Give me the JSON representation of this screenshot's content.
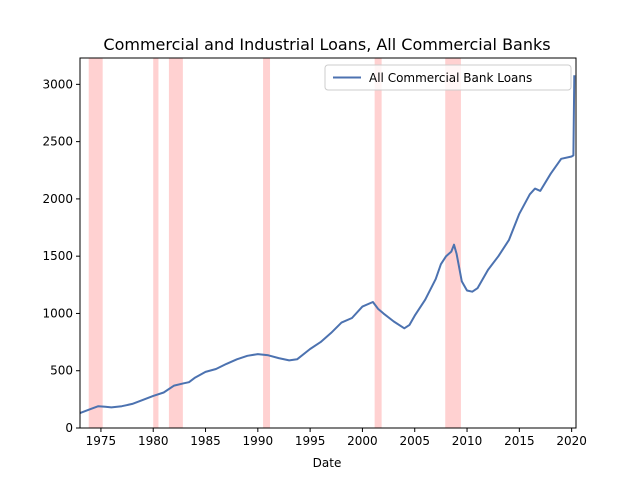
{
  "chart_data": {
    "type": "line",
    "title": "Commercial and Industrial Loans, All Commercial Banks",
    "xlabel": "Date",
    "ylabel": "",
    "xlim": [
      "1973-01",
      "2020-06"
    ],
    "ylim": [
      0,
      3230
    ],
    "x_ticks": [
      "1975",
      "1980",
      "1985",
      "1990",
      "1995",
      "2000",
      "2005",
      "2010",
      "2015",
      "2020"
    ],
    "y_ticks": [
      0,
      500,
      1000,
      1500,
      2000,
      2500,
      3000
    ],
    "grid": false,
    "legend_position": "upper right",
    "series": [
      {
        "name": "All Commercial Bank Loans",
        "color": "#4c72b0",
        "x": [
          "1973-01",
          "1974-01",
          "1974-10",
          "1975-06",
          "1976-01",
          "1977-01",
          "1978-01",
          "1979-01",
          "1980-01",
          "1981-01",
          "1982-01",
          "1982-12",
          "1983-06",
          "1984-01",
          "1985-01",
          "1986-01",
          "1987-01",
          "1988-01",
          "1989-01",
          "1990-01",
          "1991-01",
          "1992-01",
          "1993-01",
          "1993-10",
          "1995-01",
          "1996-01",
          "1997-01",
          "1998-01",
          "1999-01",
          "2000-01",
          "2001-01",
          "2001-07",
          "2002-01",
          "2003-01",
          "2004-01",
          "2004-07",
          "2005-01",
          "2006-01",
          "2007-01",
          "2007-07",
          "2008-01",
          "2008-07",
          "2008-10",
          "2009-01",
          "2009-07",
          "2010-01",
          "2010-07",
          "2011-01",
          "2012-01",
          "2013-01",
          "2014-01",
          "2015-01",
          "2016-01",
          "2016-07",
          "2017-01",
          "2018-01",
          "2019-01",
          "2020-01",
          "2020-03",
          "2020-04"
        ],
        "values": [
          130,
          165,
          190,
          185,
          180,
          190,
          210,
          245,
          280,
          310,
          370,
          390,
          400,
          440,
          490,
          515,
          560,
          600,
          630,
          645,
          635,
          610,
          590,
          600,
          690,
          750,
          830,
          920,
          960,
          1060,
          1100,
          1040,
          1000,
          930,
          870,
          900,
          980,
          1120,
          1300,
          1430,
          1500,
          1540,
          1600,
          1520,
          1280,
          1200,
          1190,
          1220,
          1380,
          1500,
          1640,
          1870,
          2040,
          2090,
          2070,
          2220,
          2350,
          2370,
          2380,
          3080
        ]
      }
    ],
    "recessions": [
      [
        "1973-11",
        "1975-03"
      ],
      [
        "1980-01",
        "1980-07"
      ],
      [
        "1981-07",
        "1982-11"
      ],
      [
        "1990-07",
        "1991-03"
      ],
      [
        "2001-03",
        "2001-11"
      ],
      [
        "2007-12",
        "2009-06"
      ]
    ],
    "recession_color": "#ffcccc"
  }
}
